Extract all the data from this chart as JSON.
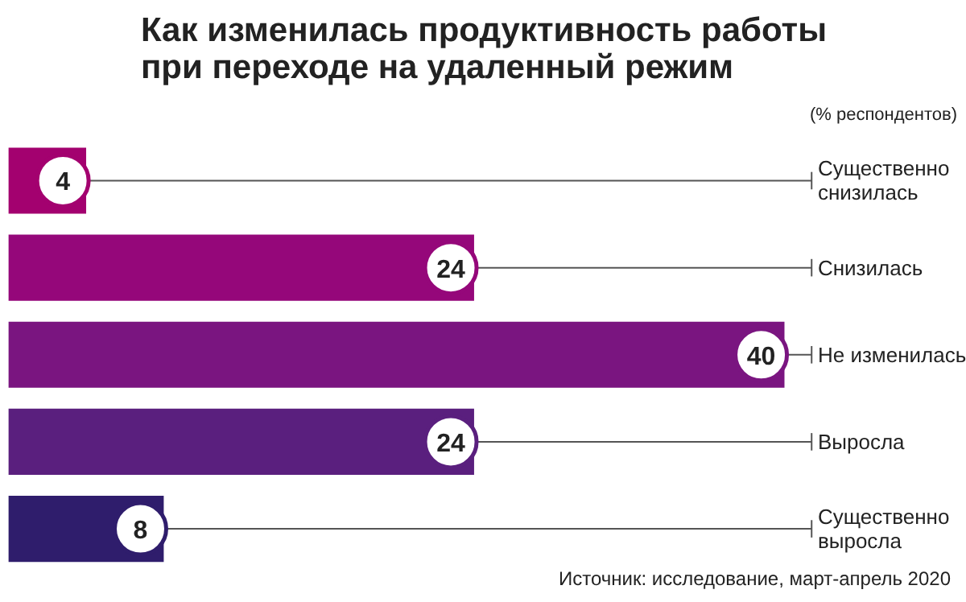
{
  "chart_data": {
    "type": "bar",
    "orientation": "horizontal",
    "title": "Как изменилась продуктивность работы\nпри переходе на удаленный режим",
    "subtitle": "(% респондентов)",
    "categories": [
      "Существенно снизилась",
      "Снизилась",
      "Не изменилась",
      "Выросла",
      "Существенно выросла"
    ],
    "values": [
      4,
      24,
      40,
      24,
      8
    ],
    "colors": [
      "#a3016f",
      "#95077a",
      "#7a1580",
      "#5a1f7e",
      "#2f1d6c"
    ],
    "tick_labels": false,
    "data_labels": true,
    "annotations": [
      "Источник: исследование, март-апрель 2020"
    ]
  }
}
